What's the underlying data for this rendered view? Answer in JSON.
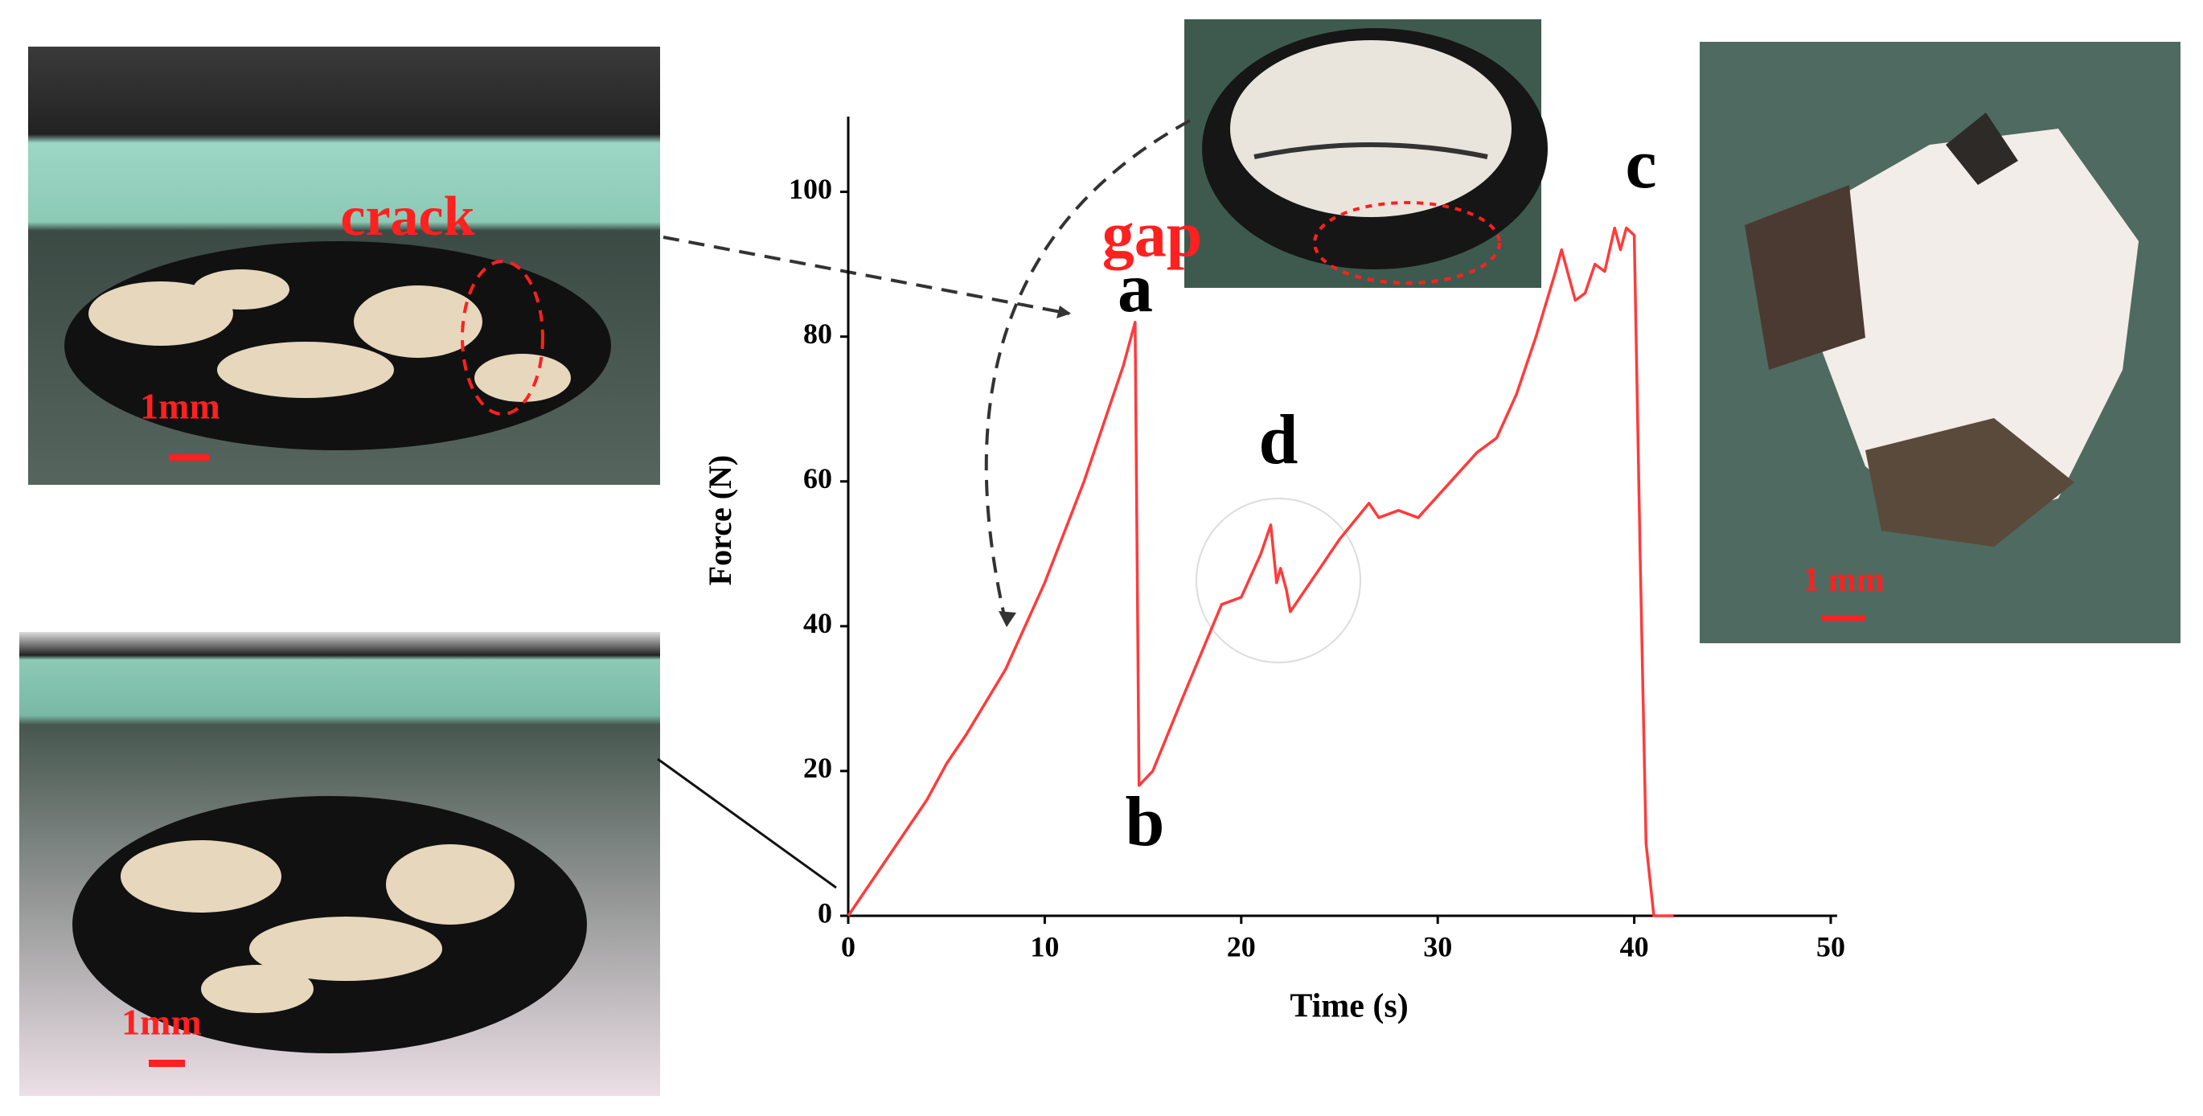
{
  "chart_data": {
    "type": "line",
    "xlabel": "Time (s)",
    "ylabel": "Force (N)",
    "x": [
      0,
      2,
      4,
      5,
      6,
      8,
      10,
      12,
      14,
      14.6,
      14.8,
      15.5,
      17,
      19,
      20,
      21,
      21.5,
      21.8,
      22,
      22.3,
      22.5,
      23,
      24,
      25,
      26.5,
      27,
      28,
      29,
      30,
      32,
      33,
      34,
      35,
      36,
      36.3,
      37,
      37.5,
      38,
      38.5,
      39,
      39.3,
      39.6,
      40,
      40.3,
      40.6,
      41,
      42
    ],
    "series": [
      {
        "color": "#ff3b3b",
        "values": [
          0,
          8,
          16,
          21,
          25,
          34,
          46,
          60,
          76,
          82,
          18,
          20,
          30,
          43,
          44,
          50,
          54,
          46,
          48,
          45,
          42,
          44,
          48,
          52,
          57,
          55,
          56,
          55,
          58,
          64,
          66,
          72,
          80,
          89,
          92,
          85,
          86,
          90,
          89,
          95,
          92,
          95,
          94,
          50,
          10,
          0,
          0
        ]
      }
    ],
    "xlim": [
      0,
      50
    ],
    "xticks": [
      0,
      10,
      20,
      30,
      40,
      50
    ],
    "ylim": [
      0,
      110
    ],
    "yticks": [
      0,
      20,
      40,
      60,
      80,
      100
    ],
    "annotations": [
      "a",
      "b",
      "c",
      "d"
    ],
    "photo_labels": [
      "crack",
      "1mm",
      "1mm",
      "gap",
      "1 mm"
    ]
  }
}
